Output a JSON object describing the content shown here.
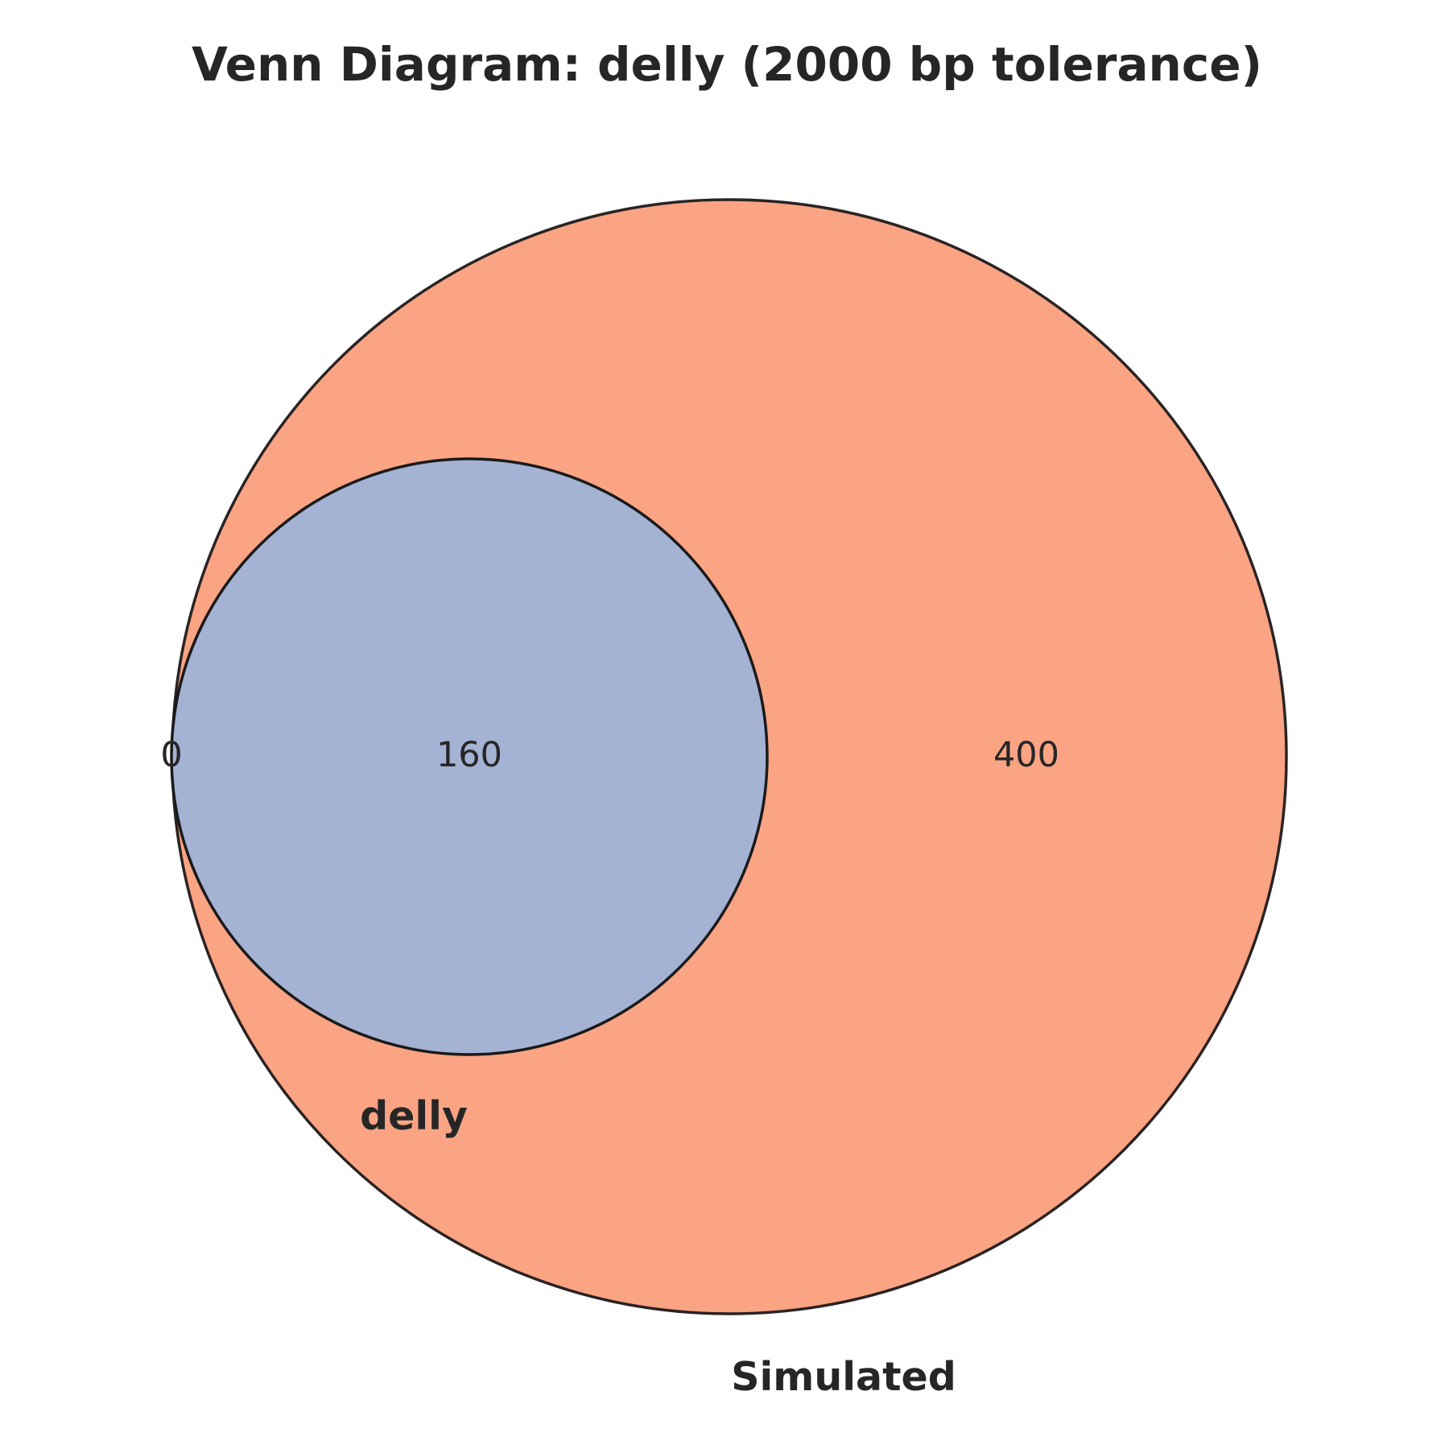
{
  "title": "Venn Diagram: delly (2000 bp tolerance)",
  "colors": {
    "simulated_fill": "#FAA484",
    "delly_fill": "#A4B2D4",
    "outline": "#2b2323",
    "text": "#262626"
  },
  "sets": [
    {
      "name": "delly",
      "label": "delly"
    },
    {
      "name": "simulated",
      "label": "Simulated"
    }
  ],
  "chart_data": {
    "type": "venn",
    "title": "Venn Diagram: delly (2000 bp tolerance)",
    "sets": [
      "delly",
      "Simulated"
    ],
    "regions": {
      "delly_only": 0,
      "intersection": 160,
      "simulated_only": 400
    },
    "labels": {
      "delly_only": "0",
      "intersection": "160",
      "simulated_only": "400"
    }
  }
}
